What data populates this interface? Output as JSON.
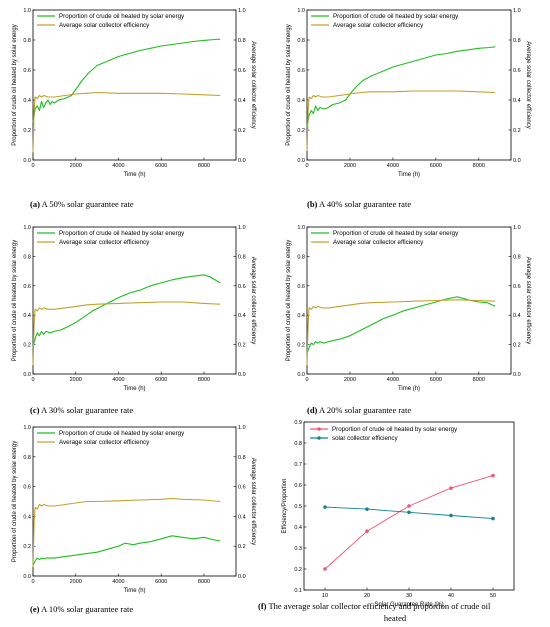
{
  "colors": {
    "proportion": "#1fbe1f",
    "efficiency": "#c4a12a",
    "f_proportion": "#f0566e",
    "f_efficiency": "#13858f"
  },
  "chart_data": [
    {
      "id": "a",
      "type": "line",
      "caption_letter": "(a)",
      "caption_text": " A 50% solar guarantee rate",
      "xlabel": "Time (h)",
      "ylabel_left": "Proportion of crude oil heated by solar energy",
      "ylabel_right": "Average solar collector efficiency",
      "xlim": [
        0,
        9500
      ],
      "ylim": [
        0,
        1.0
      ],
      "xticks": [
        0,
        2000,
        4000,
        6000,
        8000
      ],
      "yticks": [
        0.0,
        0.2,
        0.4,
        0.6,
        0.8,
        1.0
      ],
      "legend_position": "top-left",
      "series": [
        {
          "name": "Proportion of crude oil heated by solar energy",
          "color_key": "proportion",
          "x": [
            0,
            100,
            200,
            300,
            400,
            500,
            600,
            700,
            800,
            900,
            1000,
            1200,
            1500,
            1800,
            2000,
            2300,
            2600,
            3000,
            3500,
            4000,
            4500,
            5000,
            5500,
            6000,
            6500,
            7000,
            7500,
            8000,
            8500,
            8760
          ],
          "y": [
            0.25,
            0.34,
            0.36,
            0.33,
            0.39,
            0.35,
            0.38,
            0.4,
            0.37,
            0.39,
            0.38,
            0.4,
            0.41,
            0.43,
            0.47,
            0.53,
            0.58,
            0.63,
            0.66,
            0.69,
            0.71,
            0.73,
            0.745,
            0.76,
            0.77,
            0.78,
            0.79,
            0.797,
            0.803,
            0.805
          ]
        },
        {
          "name": "Average solar collector efficiency",
          "color_key": "efficiency",
          "x": [
            0,
            50,
            100,
            200,
            300,
            400,
            500,
            700,
            1000,
            1500,
            2000,
            2500,
            3000,
            4000,
            5000,
            6000,
            7000,
            8000,
            8760
          ],
          "y": [
            0.05,
            0.33,
            0.42,
            0.41,
            0.43,
            0.42,
            0.43,
            0.42,
            0.42,
            0.43,
            0.44,
            0.445,
            0.45,
            0.445,
            0.445,
            0.445,
            0.44,
            0.435,
            0.43
          ]
        }
      ]
    },
    {
      "id": "b",
      "type": "line",
      "caption_letter": "(b)",
      "caption_text": " A 40% solar guarantee rate",
      "xlabel": "Time (h)",
      "ylabel_left": "Proportion of crude oil heated by solar energy",
      "ylabel_right": "Average solar collector efficiency",
      "xlim": [
        0,
        9500
      ],
      "ylim": [
        0,
        1.0
      ],
      "xticks": [
        0,
        2000,
        4000,
        6000,
        8000
      ],
      "yticks": [
        0.0,
        0.2,
        0.4,
        0.6,
        0.8,
        1.0
      ],
      "legend_position": "top-left",
      "series": [
        {
          "name": "Proportion of crude oil heated by solar energy",
          "color_key": "proportion",
          "x": [
            0,
            100,
            200,
            300,
            400,
            500,
            600,
            800,
            1000,
            1200,
            1500,
            1800,
            2000,
            2300,
            2600,
            3000,
            3500,
            4000,
            4500,
            5000,
            5500,
            6000,
            6500,
            7000,
            7500,
            8000,
            8500,
            8760
          ],
          "y": [
            0.22,
            0.3,
            0.33,
            0.31,
            0.36,
            0.33,
            0.35,
            0.34,
            0.35,
            0.37,
            0.38,
            0.4,
            0.44,
            0.49,
            0.53,
            0.56,
            0.59,
            0.62,
            0.64,
            0.66,
            0.68,
            0.7,
            0.71,
            0.725,
            0.735,
            0.745,
            0.75,
            0.755
          ]
        },
        {
          "name": "Average solar collector efficiency",
          "color_key": "efficiency",
          "x": [
            0,
            50,
            100,
            200,
            300,
            400,
            500,
            700,
            1000,
            1500,
            2000,
            2500,
            3000,
            4000,
            5000,
            6000,
            7000,
            8000,
            8760
          ],
          "y": [
            0.06,
            0.33,
            0.42,
            0.41,
            0.43,
            0.42,
            0.43,
            0.42,
            0.42,
            0.43,
            0.44,
            0.45,
            0.455,
            0.455,
            0.46,
            0.46,
            0.46,
            0.455,
            0.45
          ]
        }
      ]
    },
    {
      "id": "c",
      "type": "line",
      "caption_letter": "(c)",
      "caption_text": " A 30% solar guarantee rate",
      "xlabel": "Time (h)",
      "ylabel_left": "Proportion of crude oil heated by solar energy",
      "ylabel_right": "Average solar collector efficiency",
      "xlim": [
        0,
        9500
      ],
      "ylim": [
        0,
        1.0
      ],
      "xticks": [
        0,
        2000,
        4000,
        6000,
        8000
      ],
      "yticks": [
        0.0,
        0.2,
        0.4,
        0.6,
        0.8,
        1.0
      ],
      "legend_position": "top-left",
      "series": [
        {
          "name": "Proportion of crude oil heated by solar energy",
          "color_key": "proportion",
          "x": [
            0,
            100,
            200,
            300,
            400,
            500,
            600,
            800,
            1000,
            1300,
            1600,
            2000,
            2400,
            2800,
            3200,
            3600,
            4000,
            4500,
            5000,
            5500,
            6000,
            6500,
            7000,
            7500,
            8000,
            8300,
            8760
          ],
          "y": [
            0.18,
            0.24,
            0.28,
            0.26,
            0.29,
            0.27,
            0.29,
            0.28,
            0.29,
            0.3,
            0.32,
            0.35,
            0.39,
            0.43,
            0.46,
            0.49,
            0.52,
            0.55,
            0.57,
            0.6,
            0.62,
            0.64,
            0.655,
            0.665,
            0.675,
            0.66,
            0.62
          ]
        },
        {
          "name": "Average solar collector efficiency",
          "color_key": "efficiency",
          "x": [
            0,
            50,
            100,
            200,
            300,
            400,
            500,
            700,
            1000,
            1500,
            2000,
            2500,
            3000,
            4000,
            5000,
            6000,
            7000,
            8000,
            8760
          ],
          "y": [
            0.06,
            0.34,
            0.44,
            0.43,
            0.45,
            0.44,
            0.45,
            0.44,
            0.44,
            0.45,
            0.46,
            0.47,
            0.475,
            0.48,
            0.485,
            0.49,
            0.49,
            0.48,
            0.475
          ]
        }
      ]
    },
    {
      "id": "d",
      "type": "line",
      "caption_letter": "(d)",
      "caption_text": " A 20% solar guarantee rate",
      "xlabel": "Time (h)",
      "ylabel_left": "Proportion of crude oil heated by solar energy",
      "ylabel_right": "Average solar collector efficiency",
      "xlim": [
        0,
        9500
      ],
      "ylim": [
        0,
        1.0
      ],
      "xticks": [
        0,
        2000,
        4000,
        6000,
        8000
      ],
      "yticks": [
        0.0,
        0.2,
        0.4,
        0.6,
        0.8,
        1.0
      ],
      "legend_position": "top-left",
      "series": [
        {
          "name": "Proportion of crude oil heated by solar energy",
          "color_key": "proportion",
          "x": [
            0,
            100,
            200,
            300,
            400,
            500,
            600,
            800,
            1000,
            1300,
            1600,
            2000,
            2400,
            2800,
            3200,
            3600,
            4000,
            4500,
            5000,
            5500,
            6000,
            6500,
            7000,
            7500,
            8000,
            8400,
            8760
          ],
          "y": [
            0.14,
            0.18,
            0.21,
            0.2,
            0.22,
            0.21,
            0.22,
            0.21,
            0.22,
            0.23,
            0.24,
            0.26,
            0.29,
            0.32,
            0.35,
            0.38,
            0.4,
            0.43,
            0.45,
            0.47,
            0.49,
            0.51,
            0.525,
            0.505,
            0.49,
            0.485,
            0.46
          ]
        },
        {
          "name": "Average solar collector efficiency",
          "color_key": "efficiency",
          "x": [
            0,
            50,
            100,
            200,
            300,
            400,
            500,
            700,
            1000,
            1500,
            2000,
            2500,
            3000,
            4000,
            5000,
            6000,
            7000,
            8000,
            8760
          ],
          "y": [
            0.06,
            0.34,
            0.45,
            0.44,
            0.46,
            0.45,
            0.46,
            0.45,
            0.45,
            0.46,
            0.47,
            0.48,
            0.485,
            0.49,
            0.495,
            0.5,
            0.505,
            0.5,
            0.495
          ]
        }
      ]
    },
    {
      "id": "e",
      "type": "line",
      "caption_letter": "(e)",
      "caption_text": " A 10% solar guarantee rate",
      "xlabel": "Time (h)",
      "ylabel_left": "Proportion of crude oil heated by solar energy",
      "ylabel_right": "Average solar collector efficiency",
      "xlim": [
        0,
        9500
      ],
      "ylim": [
        0,
        1.0
      ],
      "xticks": [
        0,
        2000,
        4000,
        6000,
        8000
      ],
      "yticks": [
        0.0,
        0.2,
        0.4,
        0.6,
        0.8,
        1.0
      ],
      "legend_position": "top-left",
      "series": [
        {
          "name": "Proportion of crude oil heated by solar energy",
          "color_key": "proportion",
          "x": [
            0,
            100,
            200,
            300,
            400,
            500,
            600,
            800,
            1000,
            1500,
            2000,
            2500,
            3000,
            3500,
            4000,
            4300,
            4700,
            5000,
            5500,
            6000,
            6500,
            7000,
            7500,
            8000,
            8400,
            8760
          ],
          "y": [
            0.07,
            0.1,
            0.12,
            0.11,
            0.12,
            0.115,
            0.12,
            0.12,
            0.12,
            0.13,
            0.14,
            0.15,
            0.16,
            0.18,
            0.2,
            0.22,
            0.21,
            0.22,
            0.23,
            0.25,
            0.27,
            0.26,
            0.25,
            0.26,
            0.245,
            0.235
          ]
        },
        {
          "name": "Average solar collector efficiency",
          "color_key": "efficiency",
          "x": [
            0,
            50,
            100,
            200,
            300,
            400,
            500,
            700,
            1000,
            1500,
            2000,
            2500,
            3000,
            4000,
            5000,
            6000,
            6500,
            7000,
            8000,
            8760
          ],
          "y": [
            0.06,
            0.36,
            0.46,
            0.45,
            0.48,
            0.47,
            0.48,
            0.47,
            0.47,
            0.48,
            0.49,
            0.5,
            0.5,
            0.505,
            0.51,
            0.515,
            0.52,
            0.515,
            0.51,
            0.5
          ]
        }
      ]
    },
    {
      "id": "f",
      "type": "line",
      "caption_letter": "(f)",
      "caption_text": " The average solar collector efficiency and proportion of crude oil heated",
      "xlabel": "Solar Guarantee Rate (%)",
      "ylabel_left": "Efficiency/Proportion",
      "xlim": [
        5,
        55
      ],
      "ylim": [
        0.1,
        0.9
      ],
      "xticks": [
        10,
        20,
        30,
        40,
        50
      ],
      "yticks": [
        0.1,
        0.2,
        0.3,
        0.4,
        0.5,
        0.6,
        0.7,
        0.8,
        0.9
      ],
      "legend_position": "top-left",
      "series": [
        {
          "name": "Proportion of crude oil heated by solar energy",
          "color_key": "f_proportion",
          "x": [
            10,
            20,
            30,
            40,
            50
          ],
          "y": [
            0.2,
            0.38,
            0.5,
            0.585,
            0.645
          ]
        },
        {
          "name": "solar collector efficiency",
          "color_key": "f_efficiency",
          "x": [
            10,
            20,
            30,
            40,
            50
          ],
          "y": [
            0.495,
            0.485,
            0.47,
            0.455,
            0.44
          ]
        }
      ]
    }
  ]
}
